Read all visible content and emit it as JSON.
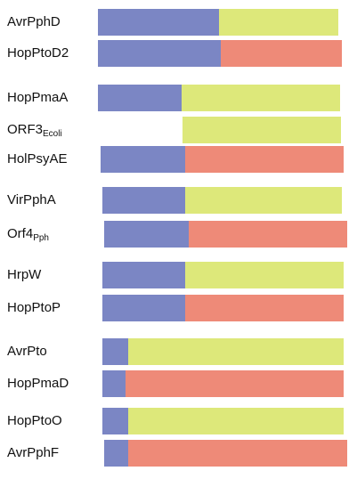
{
  "colors": {
    "n_terminal": "#7b86c4",
    "c_terminal_green": "#dde87a",
    "c_terminal_red": "#ee8a78"
  },
  "rows": [
    {
      "name": "AvrPphD",
      "sub": "",
      "n_start": 110,
      "n_end": 246,
      "c_end": 380,
      "c_type": "green"
    },
    {
      "name": "HopPtoD2",
      "sub": "",
      "n_start": 110,
      "n_end": 248,
      "c_end": 384,
      "c_type": "red"
    },
    {
      "name": "HopPmaA",
      "sub": "",
      "n_start": 110,
      "n_end": 204,
      "c_end": 382,
      "c_type": "green"
    },
    {
      "name": "ORF3",
      "sub": "Ecoli",
      "n_start": null,
      "n_end": 205,
      "c_end": 383,
      "c_type": "green"
    },
    {
      "name": "HolPsyAE",
      "sub": "",
      "n_start": 113,
      "n_end": 208,
      "c_end": 386,
      "c_type": "red"
    },
    {
      "name": "VirPphA",
      "sub": "",
      "n_start": 115,
      "n_end": 208,
      "c_end": 384,
      "c_type": "green"
    },
    {
      "name": "Orf4",
      "sub": "Pph",
      "n_start": 117,
      "n_end": 212,
      "c_end": 390,
      "c_type": "red"
    },
    {
      "name": "HrpW",
      "sub": "",
      "n_start": 115,
      "n_end": 208,
      "c_end": 386,
      "c_type": "green"
    },
    {
      "name": "HopPtoP",
      "sub": "",
      "n_start": 115,
      "n_end": 208,
      "c_end": 386,
      "c_type": "red"
    },
    {
      "name": "AvrPto",
      "sub": "",
      "n_start": 115,
      "n_end": 144,
      "c_end": 386,
      "c_type": "green"
    },
    {
      "name": "HopPmaD",
      "sub": "",
      "n_start": 115,
      "n_end": 141,
      "c_end": 386,
      "c_type": "red"
    },
    {
      "name": "HopPtoO",
      "sub": "",
      "n_start": 115,
      "n_end": 144,
      "c_end": 386,
      "c_type": "green"
    },
    {
      "name": "AvrPphF",
      "sub": "",
      "n_start": 117,
      "n_end": 144,
      "c_end": 390,
      "c_type": "red"
    }
  ]
}
